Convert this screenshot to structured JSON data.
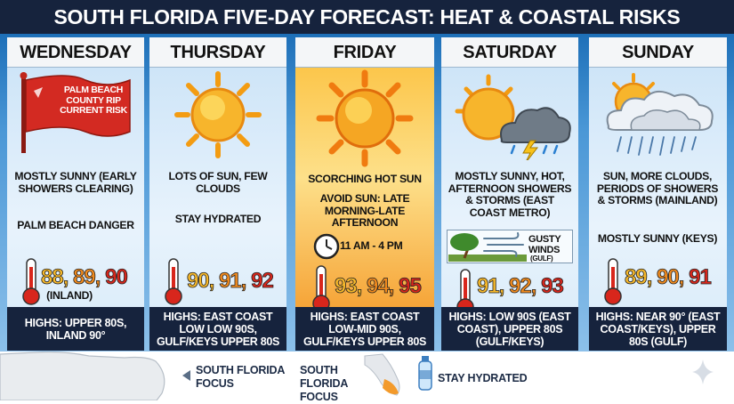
{
  "header": {
    "title": "SOUTH FLORIDA FIVE-DAY FORECAST: HEAT & COASTAL RISKS"
  },
  "days": [
    {
      "name": "WEDNESDAY",
      "flag": "PALM BEACH COUNTY RIP CURRENT RISK",
      "lines": [
        "MOSTLY SUNNY (EARLY SHOWERS CLEARING)",
        "PALM BEACH DANGER"
      ],
      "temps": [
        "88,",
        "89,",
        "90"
      ],
      "temp_note": "(INLAND)",
      "highs": "HIGHS: UPPER 80S, INLAND 90°"
    },
    {
      "name": "THURSDAY",
      "lines": [
        "LOTS OF SUN, FEW CLOUDS",
        "STAY HYDRATED"
      ],
      "temps": [
        "90,",
        "91,",
        "92"
      ],
      "highs": "HIGHS: EAST COAST LOW LOW 90S, GULF/KEYS UPPER 80S"
    },
    {
      "name": "FRIDAY",
      "lines": [
        "SCORCHING HOT SUN",
        "AVOID SUN: LATE MORNING-LATE AFTERNOON"
      ],
      "time": "11 AM - 4 PM",
      "temps": [
        "93,",
        "94,",
        "95"
      ],
      "highs": "HIGHS: EAST COAST LOW-MID 90S, GULF/KEYS UPPER 80S"
    },
    {
      "name": "SATURDAY",
      "lines": [
        "MOSTLY SUNNY, HOT, AFTERNOON SHOWERS & STORMS (EAST COAST METRO)"
      ],
      "wind": "GUSTY WINDS",
      "wind_note": "(GULF)",
      "temps": [
        "91,",
        "92,",
        "93"
      ],
      "highs": "HIGHS: LOW 90S (EAST COAST), UPPER 80S (GULF/KEYS)"
    },
    {
      "name": "SUNDAY",
      "lines": [
        "SUN, MORE CLOUDS, PERIODS OF SHOWERS & STORMS (MAINLAND)",
        "MOSTLY SUNNY (KEYS)"
      ],
      "temps": [
        "89,",
        "90,",
        "91"
      ],
      "highs": "HIGHS: NEAR 90° (EAST COAST/KEYS), UPPER 80S (GULF)"
    }
  ],
  "footer": {
    "focus_1": "SOUTH FLORIDA FOCUS",
    "focus_2": "SOUTH FLORIDA FOCUS",
    "hydrate": "STAY HYDRATED"
  }
}
